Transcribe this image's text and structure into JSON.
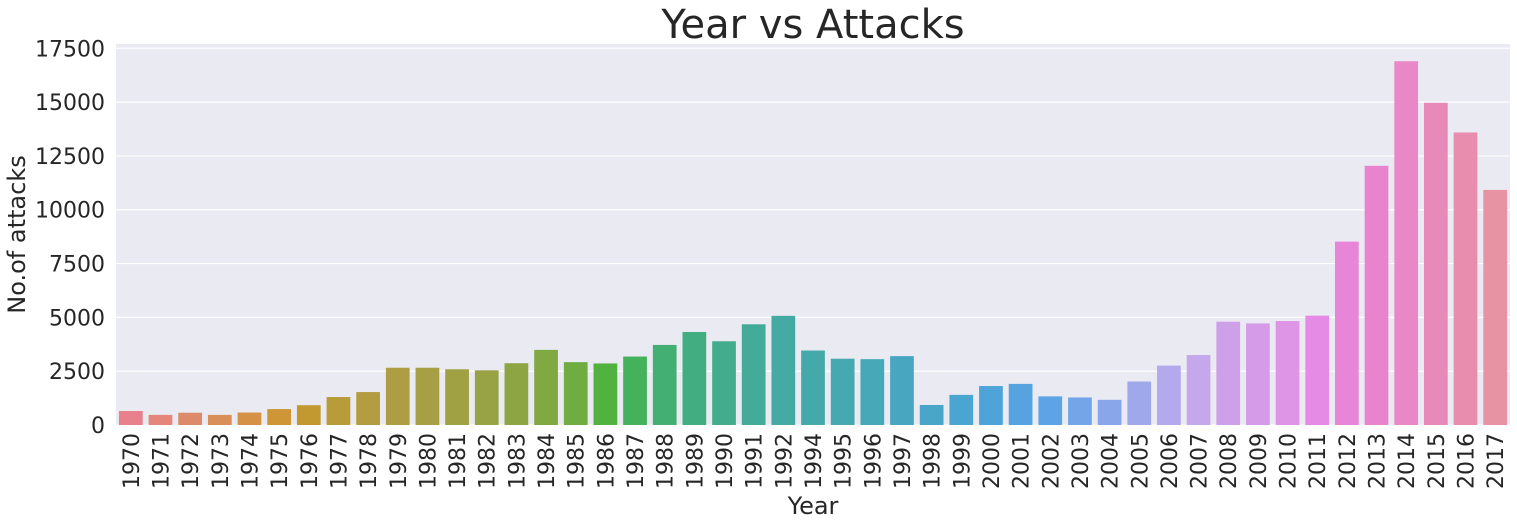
{
  "chart_data": {
    "type": "bar",
    "title": "Year vs Attacks",
    "xlabel": "Year",
    "ylabel": "No.of attacks",
    "ylim": [
      0,
      17700
    ],
    "yticks": [
      0,
      2500,
      5000,
      7500,
      10000,
      12500,
      15000,
      17500
    ],
    "grid": true,
    "background_color": "#eaeaf2",
    "grid_color": "#ffffff",
    "categories": [
      "1970",
      "1971",
      "1972",
      "1973",
      "1974",
      "1975",
      "1976",
      "1977",
      "1978",
      "1979",
      "1980",
      "1981",
      "1982",
      "1983",
      "1984",
      "1985",
      "1986",
      "1987",
      "1988",
      "1989",
      "1990",
      "1991",
      "1992",
      "1994",
      "1995",
      "1996",
      "1997",
      "1998",
      "1999",
      "2000",
      "2001",
      "2002",
      "2003",
      "2004",
      "2005",
      "2006",
      "2007",
      "2008",
      "2009",
      "2010",
      "2011",
      "2012",
      "2013",
      "2014",
      "2015",
      "2016",
      "2017"
    ],
    "values": [
      650,
      470,
      570,
      470,
      580,
      740,
      920,
      1300,
      1530,
      2660,
      2660,
      2590,
      2540,
      2870,
      3490,
      2920,
      2860,
      3180,
      3720,
      4320,
      3890,
      4680,
      5070,
      3460,
      3080,
      3060,
      3200,
      930,
      1400,
      1810,
      1910,
      1330,
      1280,
      1170,
      2020,
      2760,
      3250,
      4800,
      4720,
      4830,
      5080,
      8520,
      12040,
      16900,
      14970,
      13590,
      10920
    ],
    "colors": [
      "#e8818b",
      "#e48679",
      "#dc8a6a",
      "#d88f5a",
      "#d59247",
      "#cf9636",
      "#c19930",
      "#b89c39",
      "#b39d40",
      "#ad9e43",
      "#a69f43",
      "#9fa143",
      "#97a344",
      "#8ea544",
      "#80a843",
      "#6fac42",
      "#52b240",
      "#44b25a",
      "#43af72",
      "#42ad80",
      "#43ac8c",
      "#44ab98",
      "#44aaa3",
      "#45a9aa",
      "#46a8b0",
      "#47a8b7",
      "#49a6c0",
      "#49a6c8",
      "#4aa5d0",
      "#4ea4d8",
      "#56a3e0",
      "#5ea3e5",
      "#73a5e8",
      "#8aa6ea",
      "#a0a8ec",
      "#b3a9ec",
      "#c4a8eb",
      "#cea0ea",
      "#d69be8",
      "#de95e6",
      "#e58be5",
      "#e786d8",
      "#e884ce",
      "#e888c6",
      "#e88ab9",
      "#e88dae",
      "#e893a4"
    ]
  }
}
